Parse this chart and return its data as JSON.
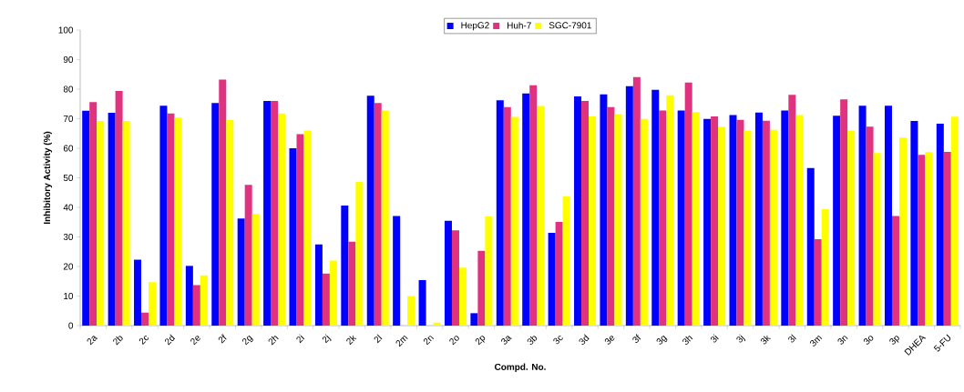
{
  "chart_data": {
    "type": "bar",
    "xlabel": "Compd. No.",
    "ylabel": "Inhibitory Activity (%)",
    "categories": [
      "2a",
      "2b",
      "2c",
      "2d",
      "2e",
      "2f",
      "2g",
      "2h",
      "2i",
      "2j",
      "2k",
      "2l",
      "2m",
      "2n",
      "2o",
      "2p",
      "3a",
      "3b",
      "3c",
      "3d",
      "3e",
      "3f",
      "3g",
      "3h",
      "3i",
      "3j",
      "3k",
      "3l",
      "3m",
      "3n",
      "3o",
      "3p",
      "DHEA",
      "5-FU"
    ],
    "series": [
      {
        "name": "HepG2",
        "color": "#0000ff",
        "values": [
          72.7,
          72,
          22.3,
          74.4,
          20.2,
          75.3,
          36.2,
          76,
          60,
          27.5,
          40.6,
          77.8,
          37.1,
          15.4,
          35.5,
          4.2,
          76.2,
          78.5,
          31.4,
          77.5,
          78.2,
          81,
          79.8,
          72.8,
          69.9,
          71.2,
          72.1,
          72.8,
          53.3,
          71,
          74.4,
          74.4,
          69.2,
          68.3
        ]
      },
      {
        "name": "Huh-7",
        "color": "#e0337f",
        "values": [
          75.6,
          79.4,
          4.4,
          71.8,
          13.7,
          83.2,
          47.6,
          76,
          64.8,
          17.6,
          28.4,
          75.3,
          0,
          0,
          32.2,
          25.3,
          73.9,
          81.3,
          35.1,
          76,
          73.9,
          84.1,
          72.8,
          82.2,
          70.8,
          69.6,
          69.3,
          78.1,
          29.2,
          76.5,
          67.3,
          37.1,
          57.8,
          58.8
        ]
      },
      {
        "name": "SGC-7901",
        "color": "#ffff00",
        "values": [
          69.2,
          69.2,
          14.7,
          70.4,
          17,
          69.5,
          37.8,
          71.8,
          66,
          22,
          48.6,
          72.8,
          10,
          1,
          19.6,
          36.9,
          70.6,
          74.3,
          43.8,
          70.8,
          71.5,
          69.9,
          77.9,
          72.2,
          67.2,
          66,
          66.2,
          71.2,
          39.4,
          66,
          58.4,
          63.6,
          58.7,
          70.7
        ]
      }
    ],
    "ylim": [
      0,
      100
    ],
    "yticks": [
      0,
      10,
      20,
      30,
      40,
      50,
      60,
      70,
      80,
      90,
      100
    ],
    "legend": "top"
  }
}
